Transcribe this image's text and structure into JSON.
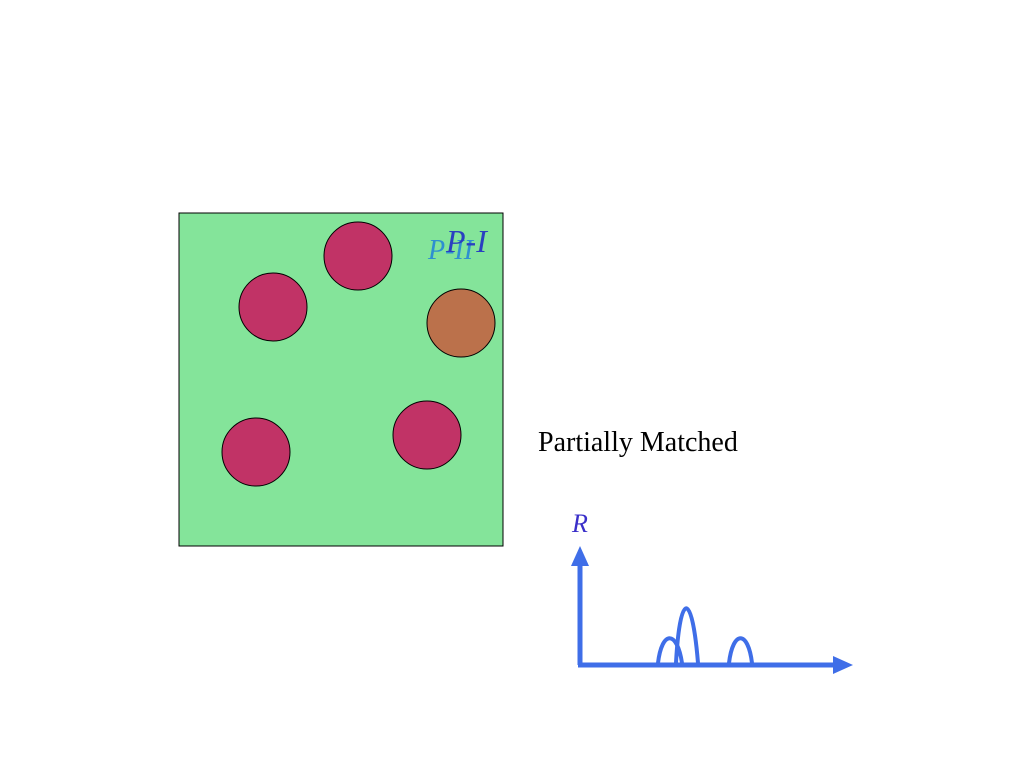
{
  "labels": {
    "p_ii": "P-II",
    "p_i": "P-I"
  },
  "caption": "Partially Matched",
  "axis_label": "R"
}
